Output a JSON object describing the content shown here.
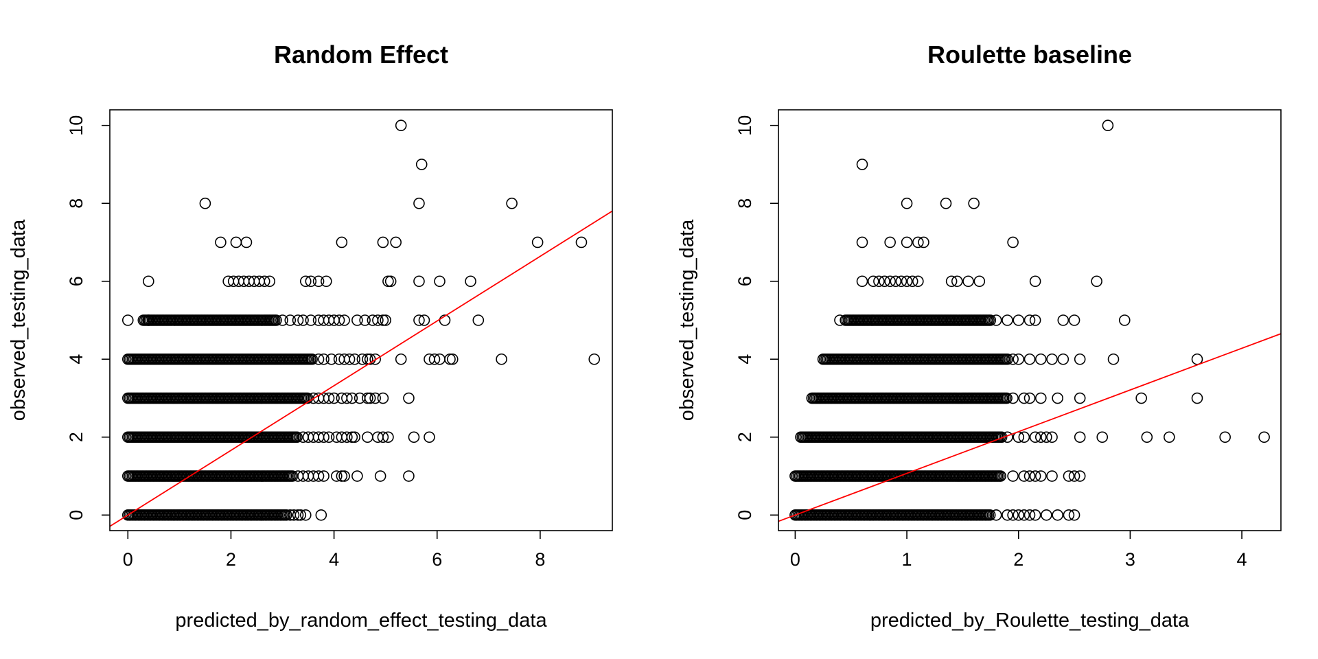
{
  "chart_data": [
    {
      "type": "scatter",
      "title": "Random Effect",
      "xlabel": "predicted_by_random_effect_testing_data",
      "ylabel": "observed_testing_data",
      "xlim": [
        -0.35,
        9.4
      ],
      "ylim": [
        -0.4,
        10.4
      ],
      "xticks": [
        "0",
        "2",
        "4",
        "6",
        "8"
      ],
      "yticks": [
        "0",
        "2",
        "4",
        "6",
        "8",
        "10"
      ],
      "grid": false,
      "marker": "open-circle",
      "point_color": "#000000",
      "fit_line": {
        "color": "#ff0000",
        "intercept": 0.0,
        "slope": 0.83
      },
      "levels": [
        {
          "y": 0,
          "dense_x": [
            0.0,
            3.1
          ],
          "x": [
            3.15,
            3.22,
            3.3,
            3.35,
            3.45,
            3.75
          ]
        },
        {
          "y": 1,
          "dense_x": [
            0.0,
            3.2
          ],
          "x": [
            3.3,
            3.4,
            3.5,
            3.6,
            3.7,
            3.8,
            4.05,
            4.15,
            4.2,
            4.45,
            4.9,
            5.45
          ]
        },
        {
          "y": 2,
          "dense_x": [
            0.0,
            3.3
          ],
          "x": [
            3.4,
            3.5,
            3.6,
            3.7,
            3.8,
            3.9,
            4.05,
            4.15,
            4.25,
            4.35,
            4.4,
            4.65,
            4.85,
            4.95,
            5.05,
            5.55,
            5.85
          ]
        },
        {
          "y": 3,
          "dense_x": [
            0.0,
            3.5
          ],
          "x": [
            3.6,
            3.7,
            3.8,
            3.9,
            4.0,
            4.15,
            4.25,
            4.35,
            4.5,
            4.65,
            4.7,
            4.8,
            4.95,
            5.45
          ]
        },
        {
          "y": 4,
          "dense_x": [
            0.0,
            3.6
          ],
          "x": [
            3.7,
            3.8,
            3.95,
            4.1,
            4.2,
            4.3,
            4.4,
            4.55,
            4.65,
            4.7,
            4.8,
            5.3,
            5.85,
            5.95,
            6.05,
            6.25,
            6.3,
            7.25,
            9.05
          ]
        },
        {
          "y": 5,
          "dense_x": [
            0.3,
            2.9
          ],
          "x": [
            0.0,
            0.4,
            3.0,
            3.15,
            3.3,
            3.4,
            3.55,
            3.7,
            3.8,
            3.9,
            4.0,
            4.1,
            4.2,
            4.45,
            4.6,
            4.75,
            4.85,
            4.95,
            5.0,
            5.65,
            5.75,
            6.15,
            6.8
          ]
        },
        {
          "y": 6,
          "x": [
            0.4,
            1.95,
            2.05,
            2.15,
            2.25,
            2.35,
            2.45,
            2.55,
            2.65,
            2.75,
            3.45,
            3.55,
            3.7,
            3.85,
            5.05,
            5.1,
            5.65,
            6.05,
            6.65
          ]
        },
        {
          "y": 7,
          "x": [
            1.8,
            2.1,
            2.3,
            4.15,
            4.95,
            5.2,
            7.95,
            8.8
          ]
        },
        {
          "y": 8,
          "x": [
            1.5,
            5.65,
            7.45
          ]
        },
        {
          "y": 9,
          "x": [
            5.7
          ]
        },
        {
          "y": 10,
          "x": [
            5.3
          ]
        }
      ]
    },
    {
      "type": "scatter",
      "title": "Roulette baseline",
      "xlabel": "predicted_by_Roulette_testing_data",
      "ylabel": "observed_testing_data",
      "xlim": [
        -0.15,
        4.35
      ],
      "ylim": [
        -0.4,
        10.4
      ],
      "xticks": [
        "0",
        "1",
        "2",
        "3",
        "4"
      ],
      "yticks": [
        "0",
        "2",
        "4",
        "6",
        "8",
        "10"
      ],
      "grid": false,
      "marker": "open-circle",
      "point_color": "#000000",
      "fit_line": {
        "color": "#ff0000",
        "intercept": 0.0,
        "slope": 1.07
      },
      "levels": [
        {
          "y": 0,
          "dense_x": [
            0.0,
            1.75
          ],
          "x": [
            1.8,
            1.9,
            1.95,
            2.0,
            2.05,
            2.1,
            2.15,
            2.25,
            2.35,
            2.45,
            2.5
          ]
        },
        {
          "y": 1,
          "dense_x": [
            0.0,
            1.85
          ],
          "x": [
            1.95,
            2.05,
            2.1,
            2.15,
            2.2,
            2.3,
            2.45,
            2.5,
            2.55
          ]
        },
        {
          "y": 2,
          "dense_x": [
            0.05,
            1.85
          ],
          "x": [
            1.9,
            2.0,
            2.05,
            2.15,
            2.2,
            2.25,
            2.3,
            2.55,
            2.75,
            3.15,
            3.35,
            3.85,
            4.2
          ]
        },
        {
          "y": 3,
          "dense_x": [
            0.15,
            1.9
          ],
          "x": [
            1.95,
            2.05,
            2.1,
            2.2,
            2.35,
            2.55,
            3.1,
            3.6
          ]
        },
        {
          "y": 4,
          "dense_x": [
            0.25,
            1.9
          ],
          "x": [
            1.95,
            2.0,
            2.1,
            2.2,
            2.3,
            2.4,
            2.55,
            2.85,
            3.6
          ]
        },
        {
          "y": 5,
          "dense_x": [
            0.45,
            1.75
          ],
          "x": [
            0.4,
            1.8,
            1.9,
            2.0,
            2.1,
            2.15,
            2.4,
            2.5,
            2.95
          ]
        },
        {
          "y": 6,
          "x": [
            0.6,
            0.7,
            0.75,
            0.8,
            0.85,
            0.9,
            0.95,
            1.0,
            1.05,
            1.1,
            1.4,
            1.45,
            1.55,
            1.65,
            2.15,
            2.7
          ]
        },
        {
          "y": 7,
          "x": [
            0.6,
            0.85,
            1.0,
            1.1,
            1.15,
            1.95
          ]
        },
        {
          "y": 8,
          "x": [
            1.0,
            1.35,
            1.6
          ]
        },
        {
          "y": 9,
          "x": [
            0.6
          ]
        },
        {
          "y": 10,
          "x": [
            2.8
          ]
        }
      ]
    }
  ]
}
